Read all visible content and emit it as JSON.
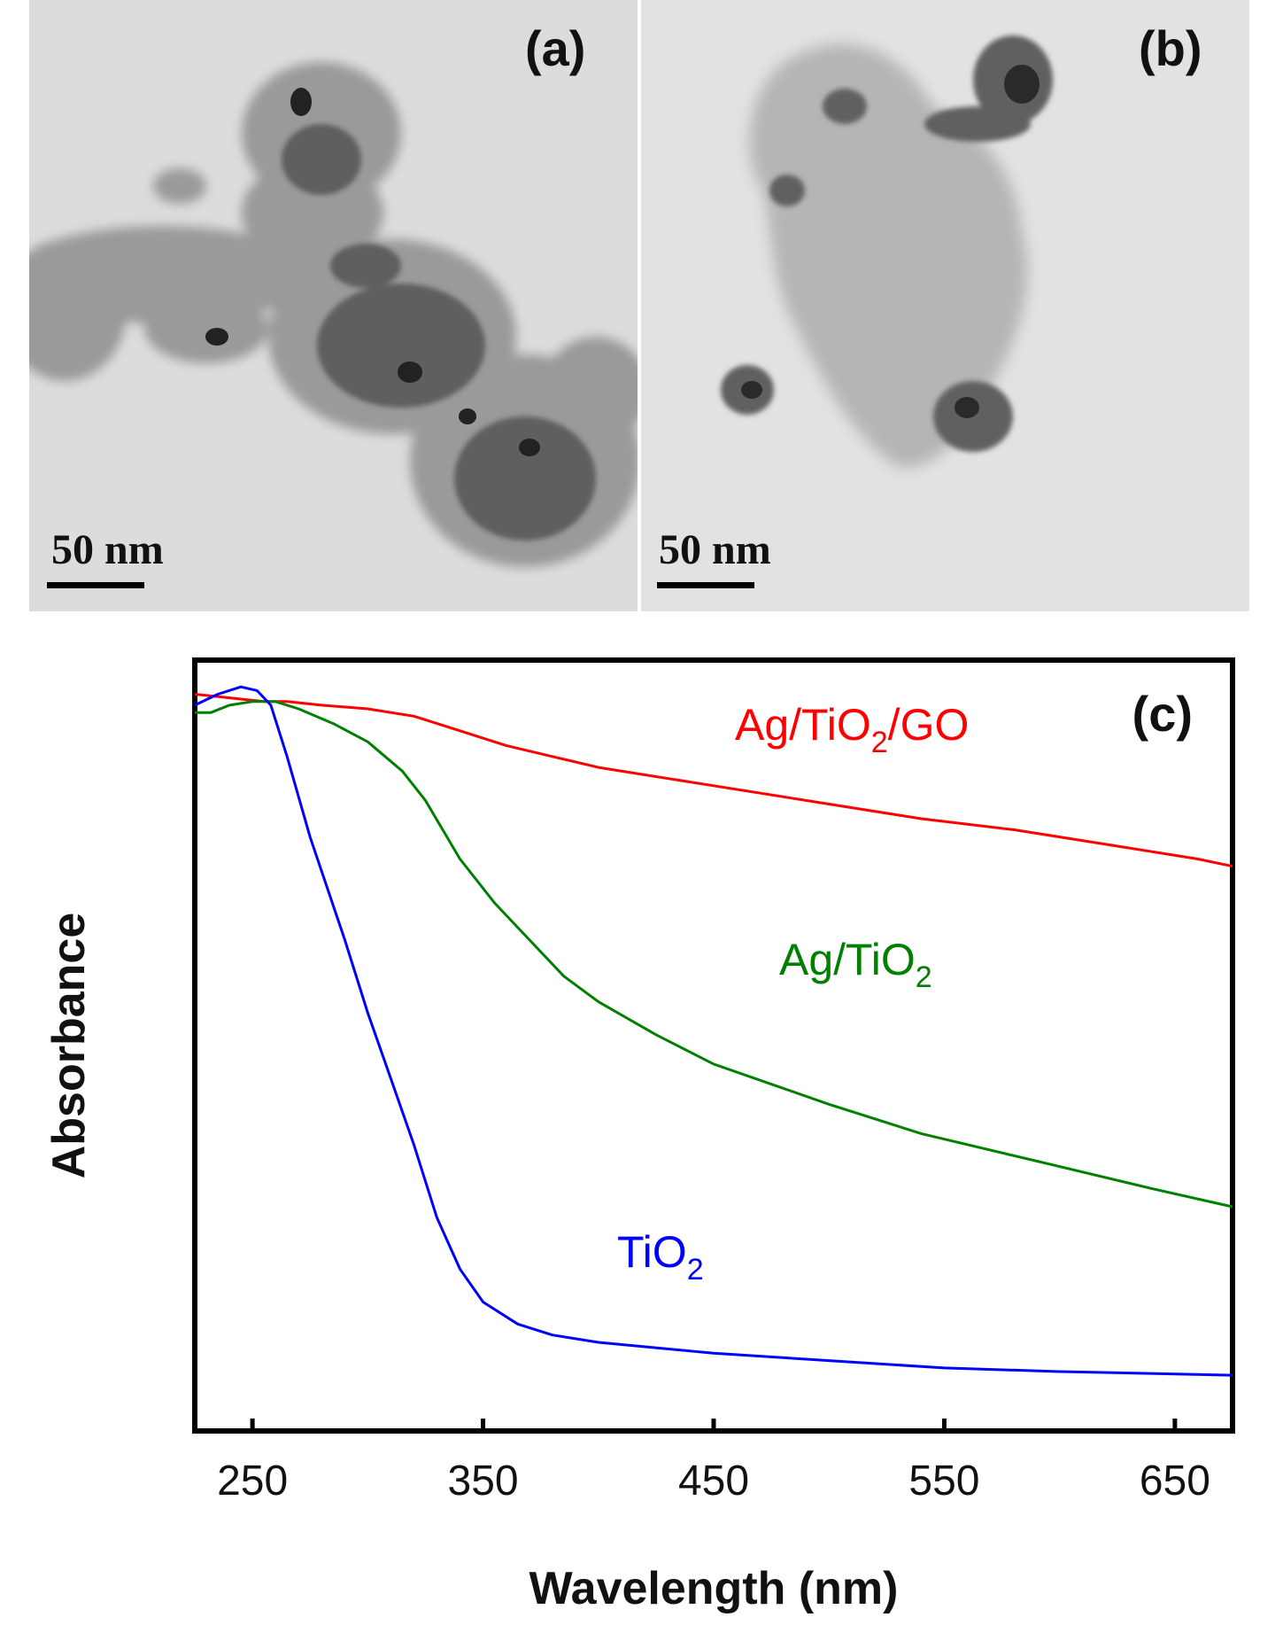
{
  "panels": [
    {
      "label": "(a)",
      "scalebar": "50 nm"
    },
    {
      "label": "(b)",
      "scalebar": "50 nm"
    }
  ],
  "chart_data": {
    "type": "line",
    "panel_label": "(c)",
    "xlabel": "Wavelength (nm)",
    "ylabel": "Absorbance",
    "xlim": [
      225,
      675
    ],
    "ylim": [
      0,
      1
    ],
    "xticks": [
      250,
      350,
      450,
      550,
      650
    ],
    "y_tick_labels": false,
    "grid": false,
    "series": [
      {
        "name": "Ag/TiO2/GO",
        "label_main": "Ag/TiO",
        "label_sub": "2",
        "label_tail": "/GO",
        "color": "#ff0000",
        "x": [
          225,
          240,
          255,
          265,
          280,
          300,
          320,
          340,
          360,
          380,
          400,
          450,
          500,
          540,
          580,
          620,
          660,
          675
        ],
        "y": [
          0.985,
          0.98,
          0.975,
          0.975,
          0.97,
          0.965,
          0.955,
          0.935,
          0.915,
          0.9,
          0.885,
          0.86,
          0.835,
          0.815,
          0.8,
          0.78,
          0.76,
          0.75
        ]
      },
      {
        "name": "Ag/TiO2",
        "label_main": "Ag/TiO",
        "label_sub": "2",
        "label_tail": "",
        "color": "#008000",
        "x": [
          225,
          232,
          240,
          250,
          260,
          270,
          285,
          300,
          315,
          325,
          340,
          355,
          370,
          385,
          400,
          425,
          450,
          500,
          540,
          560,
          600,
          640,
          675
        ],
        "y": [
          0.96,
          0.96,
          0.97,
          0.975,
          0.975,
          0.965,
          0.945,
          0.92,
          0.88,
          0.84,
          0.76,
          0.7,
          0.65,
          0.6,
          0.565,
          0.52,
          0.48,
          0.425,
          0.385,
          0.37,
          0.34,
          0.31,
          0.285
        ]
      },
      {
        "name": "TiO2",
        "label_main": "TiO",
        "label_sub": "2",
        "label_tail": "",
        "color": "#0000ff",
        "x": [
          225,
          235,
          245,
          252,
          258,
          265,
          275,
          290,
          300,
          310,
          320,
          330,
          340,
          350,
          365,
          380,
          400,
          450,
          500,
          550,
          600,
          675
        ],
        "y": [
          0.97,
          0.985,
          0.995,
          0.99,
          0.97,
          0.9,
          0.79,
          0.65,
          0.55,
          0.46,
          0.37,
          0.27,
          0.2,
          0.155,
          0.125,
          0.11,
          0.1,
          0.085,
          0.075,
          0.065,
          0.06,
          0.055
        ]
      }
    ]
  }
}
